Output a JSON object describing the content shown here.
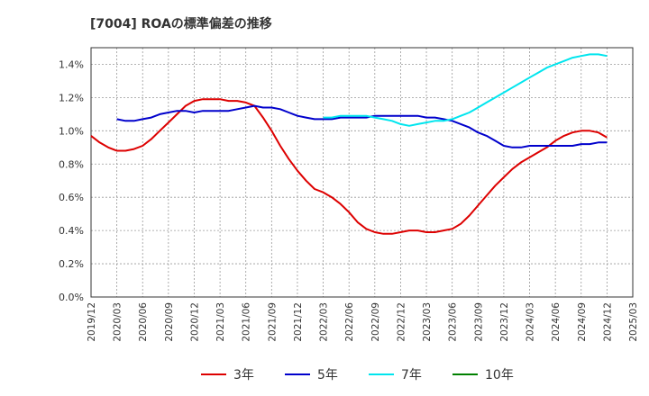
{
  "chart_data": {
    "type": "line",
    "title": "[7004]  ROAの標準偏差の推移",
    "xlabel": "",
    "ylabel": "",
    "ylim": [
      0,
      0.015
    ],
    "x_ticks": [
      "2019/12",
      "2020/03",
      "2020/06",
      "2020/09",
      "2020/12",
      "2021/03",
      "2021/06",
      "2021/09",
      "2021/12",
      "2022/03",
      "2022/06",
      "2022/09",
      "2022/12",
      "2023/03",
      "2023/06",
      "2023/09",
      "2023/12",
      "2024/03",
      "2024/06",
      "2024/09",
      "2024/12",
      "2025/03"
    ],
    "y_ticks": [
      "0.0%",
      "0.2%",
      "0.4%",
      "0.6%",
      "0.8%",
      "1.0%",
      "1.2%",
      "1.4%"
    ],
    "y_tick_values": [
      0,
      0.002,
      0.004,
      0.006,
      0.008,
      0.01,
      0.012,
      0.014
    ],
    "grid": true,
    "legend_position": "bottom",
    "series": [
      {
        "name": "3年",
        "color": "#dd0000",
        "points": [
          [
            "2019/12",
            0.0097
          ],
          [
            "2020/01",
            0.0093
          ],
          [
            "2020/02",
            0.009
          ],
          [
            "2020/03",
            0.0088
          ],
          [
            "2020/04",
            0.0088
          ],
          [
            "2020/05",
            0.0089
          ],
          [
            "2020/06",
            0.0091
          ],
          [
            "2020/07",
            0.0095
          ],
          [
            "2020/08",
            0.01
          ],
          [
            "2020/09",
            0.0105
          ],
          [
            "2020/10",
            0.011
          ],
          [
            "2020/11",
            0.0115
          ],
          [
            "2020/12",
            0.0118
          ],
          [
            "2021/01",
            0.0119
          ],
          [
            "2021/02",
            0.0119
          ],
          [
            "2021/03",
            0.0119
          ],
          [
            "2021/04",
            0.0118
          ],
          [
            "2021/05",
            0.0118
          ],
          [
            "2021/06",
            0.0117
          ],
          [
            "2021/07",
            0.0115
          ],
          [
            "2021/08",
            0.0108
          ],
          [
            "2021/09",
            0.01
          ],
          [
            "2021/10",
            0.0091
          ],
          [
            "2021/11",
            0.0083
          ],
          [
            "2021/12",
            0.0076
          ],
          [
            "2022/01",
            0.007
          ],
          [
            "2022/02",
            0.0065
          ],
          [
            "2022/03",
            0.0063
          ],
          [
            "2022/04",
            0.006
          ],
          [
            "2022/05",
            0.0056
          ],
          [
            "2022/06",
            0.0051
          ],
          [
            "2022/07",
            0.0045
          ],
          [
            "2022/08",
            0.0041
          ],
          [
            "2022/09",
            0.0039
          ],
          [
            "2022/10",
            0.0038
          ],
          [
            "2022/11",
            0.0038
          ],
          [
            "2022/12",
            0.0039
          ],
          [
            "2023/01",
            0.004
          ],
          [
            "2023/02",
            0.004
          ],
          [
            "2023/03",
            0.0039
          ],
          [
            "2023/04",
            0.0039
          ],
          [
            "2023/05",
            0.004
          ],
          [
            "2023/06",
            0.0041
          ],
          [
            "2023/07",
            0.0044
          ],
          [
            "2023/08",
            0.0049
          ],
          [
            "2023/09",
            0.0055
          ],
          [
            "2023/10",
            0.0061
          ],
          [
            "2023/11",
            0.0067
          ],
          [
            "2023/12",
            0.0072
          ],
          [
            "2024/01",
            0.0077
          ],
          [
            "2024/02",
            0.0081
          ],
          [
            "2024/03",
            0.0084
          ],
          [
            "2024/04",
            0.0087
          ],
          [
            "2024/05",
            0.009
          ],
          [
            "2024/06",
            0.0094
          ],
          [
            "2024/07",
            0.0097
          ],
          [
            "2024/08",
            0.0099
          ],
          [
            "2024/09",
            0.01
          ],
          [
            "2024/10",
            0.01
          ],
          [
            "2024/11",
            0.0099
          ],
          [
            "2024/12",
            0.0096
          ]
        ]
      },
      {
        "name": "5年",
        "color": "#0000cc",
        "points": [
          [
            "2020/03",
            0.0107
          ],
          [
            "2020/04",
            0.0106
          ],
          [
            "2020/05",
            0.0106
          ],
          [
            "2020/06",
            0.0107
          ],
          [
            "2020/07",
            0.0108
          ],
          [
            "2020/08",
            0.011
          ],
          [
            "2020/09",
            0.0111
          ],
          [
            "2020/10",
            0.0112
          ],
          [
            "2020/11",
            0.0112
          ],
          [
            "2020/12",
            0.0111
          ],
          [
            "2021/01",
            0.0112
          ],
          [
            "2021/02",
            0.0112
          ],
          [
            "2021/03",
            0.0112
          ],
          [
            "2021/04",
            0.0112
          ],
          [
            "2021/05",
            0.0113
          ],
          [
            "2021/06",
            0.0114
          ],
          [
            "2021/07",
            0.0115
          ],
          [
            "2021/08",
            0.0114
          ],
          [
            "2021/09",
            0.0114
          ],
          [
            "2021/10",
            0.0113
          ],
          [
            "2021/11",
            0.0111
          ],
          [
            "2021/12",
            0.0109
          ],
          [
            "2022/01",
            0.0108
          ],
          [
            "2022/02",
            0.0107
          ],
          [
            "2022/03",
            0.0107
          ],
          [
            "2022/04",
            0.0107
          ],
          [
            "2022/05",
            0.0108
          ],
          [
            "2022/06",
            0.0108
          ],
          [
            "2022/07",
            0.0108
          ],
          [
            "2022/08",
            0.0108
          ],
          [
            "2022/09",
            0.0109
          ],
          [
            "2022/10",
            0.0109
          ],
          [
            "2022/11",
            0.0109
          ],
          [
            "2022/12",
            0.0109
          ],
          [
            "2023/01",
            0.0109
          ],
          [
            "2023/02",
            0.0109
          ],
          [
            "2023/03",
            0.0108
          ],
          [
            "2023/04",
            0.0108
          ],
          [
            "2023/05",
            0.0107
          ],
          [
            "2023/06",
            0.0106
          ],
          [
            "2023/07",
            0.0104
          ],
          [
            "2023/08",
            0.0102
          ],
          [
            "2023/09",
            0.0099
          ],
          [
            "2023/10",
            0.0097
          ],
          [
            "2023/11",
            0.0094
          ],
          [
            "2023/12",
            0.0091
          ],
          [
            "2024/01",
            0.009
          ],
          [
            "2024/02",
            0.009
          ],
          [
            "2024/03",
            0.0091
          ],
          [
            "2024/04",
            0.0091
          ],
          [
            "2024/05",
            0.0091
          ],
          [
            "2024/06",
            0.0091
          ],
          [
            "2024/07",
            0.0091
          ],
          [
            "2024/08",
            0.0091
          ],
          [
            "2024/09",
            0.0092
          ],
          [
            "2024/10",
            0.0092
          ],
          [
            "2024/11",
            0.0093
          ],
          [
            "2024/12",
            0.0093
          ]
        ]
      },
      {
        "name": "7年",
        "color": "#00e5ee",
        "points": [
          [
            "2022/03",
            0.0108
          ],
          [
            "2022/04",
            0.0108
          ],
          [
            "2022/05",
            0.0109
          ],
          [
            "2022/06",
            0.0109
          ],
          [
            "2022/07",
            0.0109
          ],
          [
            "2022/08",
            0.0109
          ],
          [
            "2022/09",
            0.0108
          ],
          [
            "2022/10",
            0.0107
          ],
          [
            "2022/11",
            0.0106
          ],
          [
            "2022/12",
            0.0104
          ],
          [
            "2023/01",
            0.0103
          ],
          [
            "2023/02",
            0.0104
          ],
          [
            "2023/03",
            0.0105
          ],
          [
            "2023/04",
            0.0106
          ],
          [
            "2023/05",
            0.0106
          ],
          [
            "2023/06",
            0.0107
          ],
          [
            "2023/07",
            0.0109
          ],
          [
            "2023/08",
            0.0111
          ],
          [
            "2023/09",
            0.0114
          ],
          [
            "2023/10",
            0.0117
          ],
          [
            "2023/11",
            0.012
          ],
          [
            "2023/12",
            0.0123
          ],
          [
            "2024/01",
            0.0126
          ],
          [
            "2024/02",
            0.0129
          ],
          [
            "2024/03",
            0.0132
          ],
          [
            "2024/04",
            0.0135
          ],
          [
            "2024/05",
            0.0138
          ],
          [
            "2024/06",
            0.014
          ],
          [
            "2024/07",
            0.0142
          ],
          [
            "2024/08",
            0.0144
          ],
          [
            "2024/09",
            0.0145
          ],
          [
            "2024/10",
            0.0146
          ],
          [
            "2024/11",
            0.0146
          ],
          [
            "2024/12",
            0.0145
          ]
        ]
      },
      {
        "name": "10年",
        "color": "#008000",
        "points": []
      }
    ]
  }
}
